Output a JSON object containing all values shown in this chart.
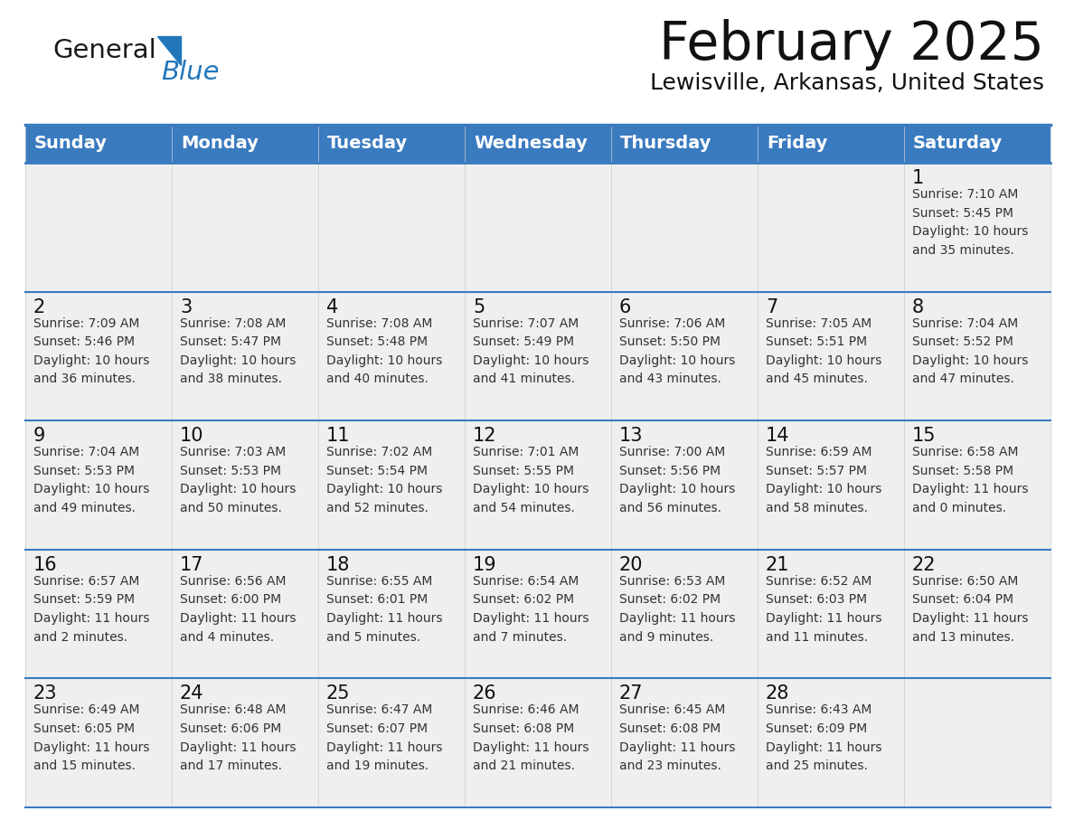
{
  "title": "February 2025",
  "subtitle": "Lewisville, Arkansas, United States",
  "header_bg": "#3a7abf",
  "header_text": "#ffffff",
  "cell_bg": "#efefef",
  "border_color": "#3a7abf",
  "day_names": [
    "Sunday",
    "Monday",
    "Tuesday",
    "Wednesday",
    "Thursday",
    "Friday",
    "Saturday"
  ],
  "weeks": [
    [
      {
        "day": "",
        "info": ""
      },
      {
        "day": "",
        "info": ""
      },
      {
        "day": "",
        "info": ""
      },
      {
        "day": "",
        "info": ""
      },
      {
        "day": "",
        "info": ""
      },
      {
        "day": "",
        "info": ""
      },
      {
        "day": "1",
        "info": "Sunrise: 7:10 AM\nSunset: 5:45 PM\nDaylight: 10 hours\nand 35 minutes."
      }
    ],
    [
      {
        "day": "2",
        "info": "Sunrise: 7:09 AM\nSunset: 5:46 PM\nDaylight: 10 hours\nand 36 minutes."
      },
      {
        "day": "3",
        "info": "Sunrise: 7:08 AM\nSunset: 5:47 PM\nDaylight: 10 hours\nand 38 minutes."
      },
      {
        "day": "4",
        "info": "Sunrise: 7:08 AM\nSunset: 5:48 PM\nDaylight: 10 hours\nand 40 minutes."
      },
      {
        "day": "5",
        "info": "Sunrise: 7:07 AM\nSunset: 5:49 PM\nDaylight: 10 hours\nand 41 minutes."
      },
      {
        "day": "6",
        "info": "Sunrise: 7:06 AM\nSunset: 5:50 PM\nDaylight: 10 hours\nand 43 minutes."
      },
      {
        "day": "7",
        "info": "Sunrise: 7:05 AM\nSunset: 5:51 PM\nDaylight: 10 hours\nand 45 minutes."
      },
      {
        "day": "8",
        "info": "Sunrise: 7:04 AM\nSunset: 5:52 PM\nDaylight: 10 hours\nand 47 minutes."
      }
    ],
    [
      {
        "day": "9",
        "info": "Sunrise: 7:04 AM\nSunset: 5:53 PM\nDaylight: 10 hours\nand 49 minutes."
      },
      {
        "day": "10",
        "info": "Sunrise: 7:03 AM\nSunset: 5:53 PM\nDaylight: 10 hours\nand 50 minutes."
      },
      {
        "day": "11",
        "info": "Sunrise: 7:02 AM\nSunset: 5:54 PM\nDaylight: 10 hours\nand 52 minutes."
      },
      {
        "day": "12",
        "info": "Sunrise: 7:01 AM\nSunset: 5:55 PM\nDaylight: 10 hours\nand 54 minutes."
      },
      {
        "day": "13",
        "info": "Sunrise: 7:00 AM\nSunset: 5:56 PM\nDaylight: 10 hours\nand 56 minutes."
      },
      {
        "day": "14",
        "info": "Sunrise: 6:59 AM\nSunset: 5:57 PM\nDaylight: 10 hours\nand 58 minutes."
      },
      {
        "day": "15",
        "info": "Sunrise: 6:58 AM\nSunset: 5:58 PM\nDaylight: 11 hours\nand 0 minutes."
      }
    ],
    [
      {
        "day": "16",
        "info": "Sunrise: 6:57 AM\nSunset: 5:59 PM\nDaylight: 11 hours\nand 2 minutes."
      },
      {
        "day": "17",
        "info": "Sunrise: 6:56 AM\nSunset: 6:00 PM\nDaylight: 11 hours\nand 4 minutes."
      },
      {
        "day": "18",
        "info": "Sunrise: 6:55 AM\nSunset: 6:01 PM\nDaylight: 11 hours\nand 5 minutes."
      },
      {
        "day": "19",
        "info": "Sunrise: 6:54 AM\nSunset: 6:02 PM\nDaylight: 11 hours\nand 7 minutes."
      },
      {
        "day": "20",
        "info": "Sunrise: 6:53 AM\nSunset: 6:02 PM\nDaylight: 11 hours\nand 9 minutes."
      },
      {
        "day": "21",
        "info": "Sunrise: 6:52 AM\nSunset: 6:03 PM\nDaylight: 11 hours\nand 11 minutes."
      },
      {
        "day": "22",
        "info": "Sunrise: 6:50 AM\nSunset: 6:04 PM\nDaylight: 11 hours\nand 13 minutes."
      }
    ],
    [
      {
        "day": "23",
        "info": "Sunrise: 6:49 AM\nSunset: 6:05 PM\nDaylight: 11 hours\nand 15 minutes."
      },
      {
        "day": "24",
        "info": "Sunrise: 6:48 AM\nSunset: 6:06 PM\nDaylight: 11 hours\nand 17 minutes."
      },
      {
        "day": "25",
        "info": "Sunrise: 6:47 AM\nSunset: 6:07 PM\nDaylight: 11 hours\nand 19 minutes."
      },
      {
        "day": "26",
        "info": "Sunrise: 6:46 AM\nSunset: 6:08 PM\nDaylight: 11 hours\nand 21 minutes."
      },
      {
        "day": "27",
        "info": "Sunrise: 6:45 AM\nSunset: 6:08 PM\nDaylight: 11 hours\nand 23 minutes."
      },
      {
        "day": "28",
        "info": "Sunrise: 6:43 AM\nSunset: 6:09 PM\nDaylight: 11 hours\nand 25 minutes."
      },
      {
        "day": "",
        "info": ""
      }
    ]
  ],
  "logo_text_general": "General",
  "logo_text_blue": "Blue",
  "logo_color_general": "#1a1a1a",
  "logo_color_blue": "#2277bb",
  "logo_triangle_color": "#2277bb",
  "title_fontsize": 42,
  "subtitle_fontsize": 18,
  "header_fontsize": 14,
  "day_num_fontsize": 15,
  "info_fontsize": 10
}
